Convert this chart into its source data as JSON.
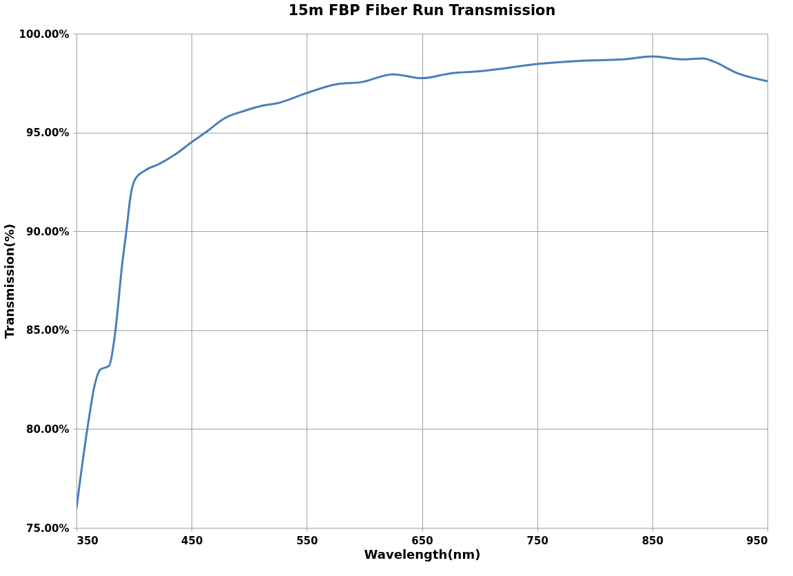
{
  "chart_data": {
    "type": "line",
    "title": "15m FBP Fiber Run Transmission",
    "xlabel": "Wavelength(nm)",
    "ylabel": "Transmission(%)",
    "x": [
      350,
      359.4,
      366.1,
      370.6,
      378.4,
      383,
      389.8,
      393.9,
      396.6,
      401.1,
      410,
      421.4,
      437.2,
      449.6,
      464.3,
      477.9,
      496,
      511,
      525.7,
      550,
      576.3,
      597.4,
      624.8,
      650,
      675.3,
      700.6,
      721.7,
      747,
      797.5,
      824.9,
      849.8,
      877.6,
      894.4,
      902.9,
      923.9,
      950
    ],
    "series": [
      {
        "color": "#4a7ebb",
        "values": [
          76.0,
          80.0,
          82.3,
          83.0,
          83.2,
          84.6,
          88.4,
          90.3,
          91.65,
          92.65,
          93.1,
          93.4,
          93.95,
          94.5,
          95.1,
          95.7,
          96.1,
          96.35,
          96.5,
          97.0,
          97.45,
          97.55,
          97.95,
          97.75,
          98.0,
          98.1,
          98.25,
          98.45,
          98.65,
          98.7,
          98.85,
          98.7,
          98.75,
          98.6,
          98.0,
          97.6
        ]
      }
    ],
    "xlim": [
      350,
      950
    ],
    "xticks": [
      350,
      450,
      550,
      650,
      750,
      850,
      950
    ],
    "ylim": [
      75,
      100
    ],
    "yticks": [
      {
        "value": 75,
        "label": "75.00%"
      },
      {
        "value": 80,
        "label": "80.00%"
      },
      {
        "value": 85,
        "label": "85.00%"
      },
      {
        "value": 90,
        "label": "90.00%"
      },
      {
        "value": 95,
        "label": "95.00%"
      },
      {
        "value": 100,
        "label": "100.00%"
      }
    ],
    "grid": true,
    "marker": "none",
    "line_style": "solid"
  }
}
